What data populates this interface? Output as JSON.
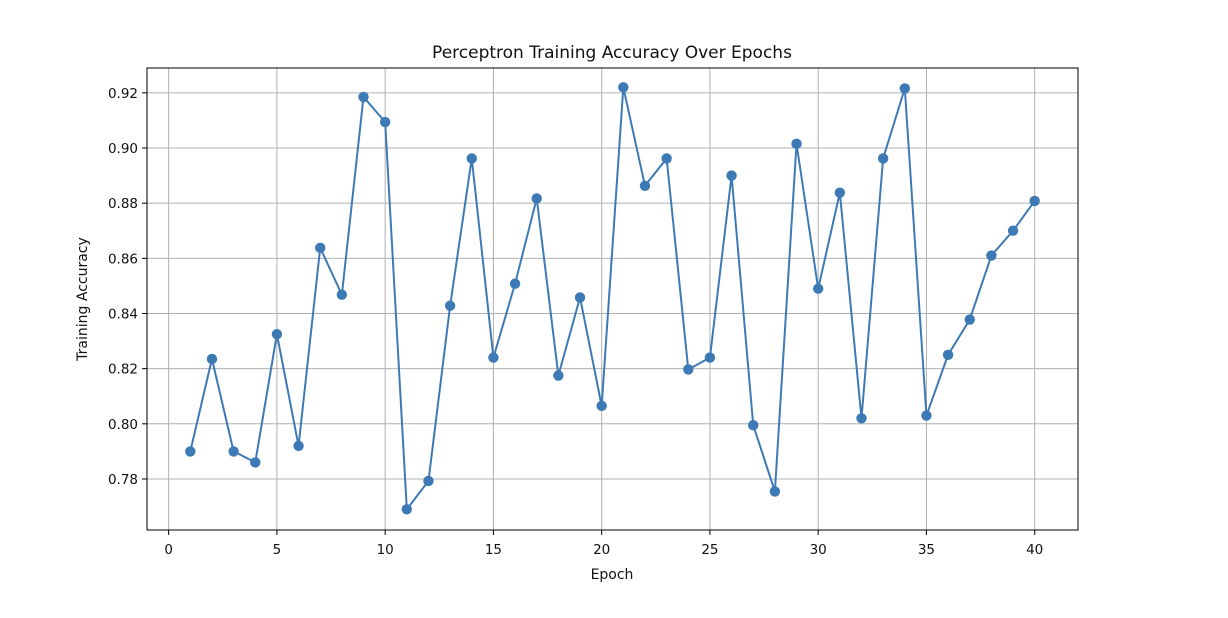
{
  "chart_data": {
    "type": "line",
    "title": "Perceptron Training Accuracy Over Epochs",
    "xlabel": "Epoch",
    "ylabel": "Training Accuracy",
    "xlim": [
      -1.0,
      42.0
    ],
    "ylim": [
      0.7615,
      0.929
    ],
    "xticks": [
      0,
      5,
      10,
      15,
      20,
      25,
      30,
      35,
      40
    ],
    "xtick_labels": [
      "0",
      "5",
      "10",
      "15",
      "20",
      "25",
      "30",
      "35",
      "40"
    ],
    "yticks": [
      0.78,
      0.8,
      0.82,
      0.84,
      0.86,
      0.88,
      0.9,
      0.92
    ],
    "ytick_labels": [
      "0.78",
      "0.80",
      "0.82",
      "0.84",
      "0.86",
      "0.88",
      "0.90",
      "0.92"
    ],
    "grid": true,
    "series": [
      {
        "name": "Training Accuracy",
        "color": "#3d7ab5",
        "marker": "circle",
        "x": [
          1,
          2,
          3,
          4,
          5,
          6,
          7,
          8,
          9,
          10,
          11,
          12,
          13,
          14,
          15,
          16,
          17,
          18,
          19,
          20,
          21,
          22,
          23,
          24,
          25,
          26,
          27,
          28,
          29,
          30,
          31,
          32,
          33,
          34,
          35,
          36,
          37,
          38,
          39,
          40
        ],
        "values": [
          0.79,
          0.8235,
          0.79,
          0.786,
          0.8325,
          0.792,
          0.8638,
          0.8468,
          0.9185,
          0.9094,
          0.769,
          0.7793,
          0.8428,
          0.8962,
          0.824,
          0.8508,
          0.8817,
          0.8175,
          0.8458,
          0.8065,
          0.922,
          0.8863,
          0.8962,
          0.8197,
          0.824,
          0.89,
          0.7995,
          0.7755,
          0.9015,
          0.849,
          0.8838,
          0.802,
          0.8962,
          0.9216,
          0.803,
          0.825,
          0.8378,
          0.861,
          0.87,
          0.8808
        ]
      }
    ]
  }
}
